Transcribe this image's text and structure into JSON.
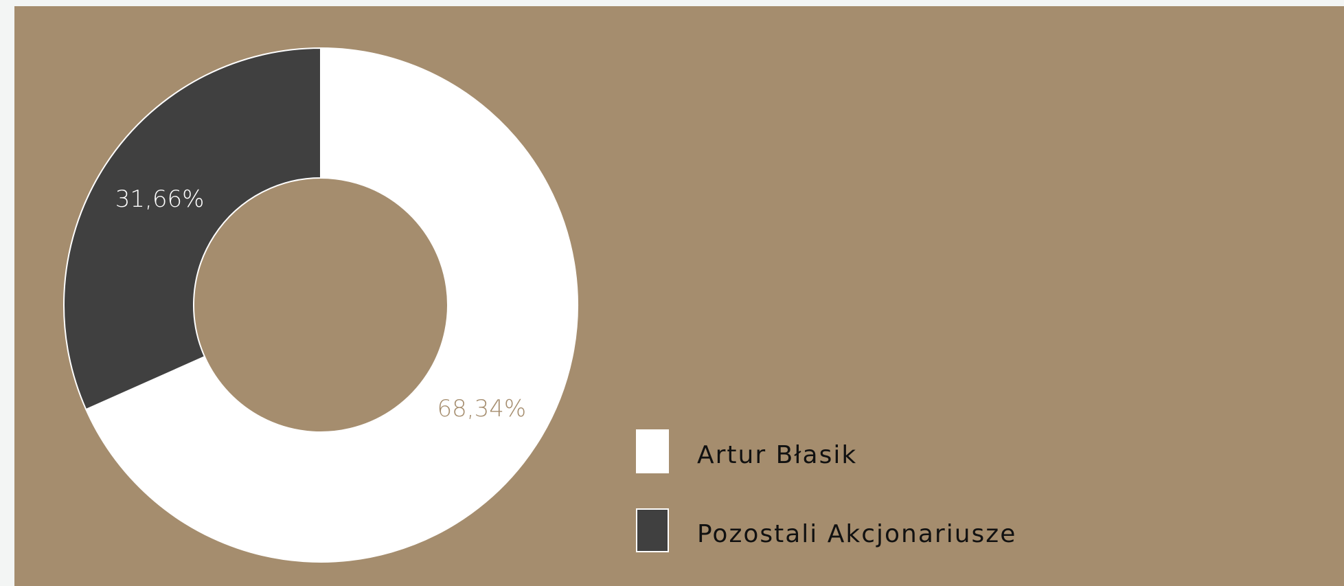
{
  "chart_data": {
    "type": "donut",
    "categories": [
      "Artur Błasik",
      "Pozostali Akcjonariusze"
    ],
    "values": [
      68.34,
      31.66
    ],
    "value_labels": [
      "68,34%",
      "31,66%"
    ],
    "colors": [
      "#ffffff",
      "#404040"
    ]
  }
}
